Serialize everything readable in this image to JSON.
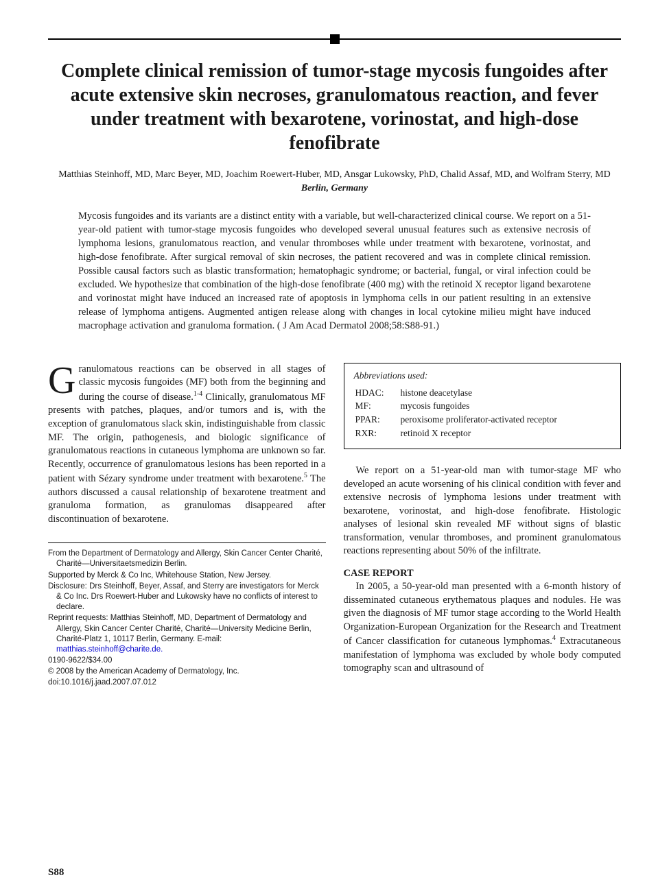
{
  "title": "Complete clinical remission of tumor-stage mycosis fungoides after acute extensive skin necroses, granulomatous reaction, and fever under treatment with bexarotene, vorinostat, and high-dose fenofibrate",
  "authors": "Matthias Steinhoff, MD, Marc Beyer, MD, Joachim Roewert-Huber, MD, Ansgar Lukowsky, PhD, Chalid Assaf, MD, and Wolfram Sterry, MD",
  "affiliation": "Berlin, Germany",
  "abstract": "Mycosis fungoides and its variants are a distinct entity with a variable, but well-characterized clinical course. We report on a 51-year-old patient with tumor-stage mycosis fungoides who developed several unusual features such as extensive necrosis of lymphoma lesions, granulomatous reaction, and venular thromboses while under treatment with bexarotene, vorinostat, and high-dose fenofibrate. After surgical removal of skin necroses, the patient recovered and was in complete clinical remission. Possible causal factors such as blastic transformation; hematophagic syndrome; or bacterial, fungal, or viral infection could be excluded. We hypothesize that combination of the high-dose fenofibrate (400 mg) with the retinoid X receptor ligand bexarotene and vorinostat might have induced an increased rate of apoptosis in lymphoma cells in our patient resulting in an extensive release of lymphoma antigens. Augmented antigen release along with changes in local cytokine milieu might have induced macrophage activation and granuloma formation. ( J Am Acad Dermatol 2008;58:S88-91.)",
  "left_col": {
    "dropcap": "G",
    "p1_a": "ranulomatous reactions can be observed in all stages of classic mycosis fungoides (MF) both from the beginning and during the course of disease.",
    "p1_ref1": "1-4",
    "p1_b": " Clinically, granulomatous MF presents with patches, plaques, and/or tumors and is, with the exception of granulomatous slack skin, indistinguishable from classic MF. The origin, pathogenesis, and biologic significance of granulomatous reactions in cutaneous lymphoma are unknown so far. Recently, occurrence of granulomatous lesions has been reported in a patient with Sézary syndrome under treatment with bexarotene.",
    "p1_ref2": "5",
    "p1_c": " The authors discussed a causal relationship of bexarotene treatment and granuloma formation, as granulomas disappeared after discontinuation of bexarotene."
  },
  "footnotes": {
    "f1": "From the Department of Dermatology and Allergy, Skin Cancer Center Charité, Charité—Universitaetsmedizin Berlin.",
    "f2": "Supported by Merck & Co Inc, Whitehouse Station, New Jersey.",
    "f3": "Disclosure: Drs Steinhoff, Beyer, Assaf, and Sterry are investigators for Merck & Co Inc. Drs Roewert-Huber and Lukowsky have no conflicts of interest to declare.",
    "f4_a": "Reprint requests: Matthias Steinhoff, MD, Department of Dermatology and Allergy, Skin Cancer Center Charité, Charité—University Medicine Berlin, Charité-Platz 1, 10117 Berlin, Germany. E-mail: ",
    "f4_email": "matthias.steinhoff@charite.de.",
    "f5": "0190-9622/$34.00",
    "f6": "© 2008 by the American Academy of Dermatology, Inc.",
    "f7": "doi:10.1016/j.jaad.2007.07.012"
  },
  "abbrev": {
    "title": "Abbreviations used:",
    "rows": [
      {
        "k": "HDAC:",
        "v": "histone deacetylase"
      },
      {
        "k": "MF:",
        "v": "mycosis fungoides"
      },
      {
        "k": "PPAR:",
        "v": "peroxisome proliferator-activated receptor"
      },
      {
        "k": "RXR:",
        "v": "retinoid X receptor"
      }
    ]
  },
  "right_col": {
    "p1": "We report on a 51-year-old man with tumor-stage MF who developed an acute worsening of his clinical condition with fever and extensive necrosis of lymphoma lesions under treatment with bexarotene, vorinostat, and high-dose fenofibrate. Histologic analyses of lesional skin revealed MF without signs of blastic transformation, venular thromboses, and prominent granulomatous reactions representing about 50% of the infiltrate.",
    "heading": "CASE REPORT",
    "p2_a": "In 2005, a 50-year-old man presented with a 6-month history of disseminated cutaneous erythematous plaques and nodules. He was given the diagnosis of MF tumor stage according to the World Health Organization-European Organization for the Research and Treatment of Cancer classification for cutaneous lymphomas.",
    "p2_ref": "4",
    "p2_b": " Extracutaneous manifestation of lymphoma was excluded by whole body computed tomography scan and ultrasound of"
  },
  "page_number": "S88"
}
